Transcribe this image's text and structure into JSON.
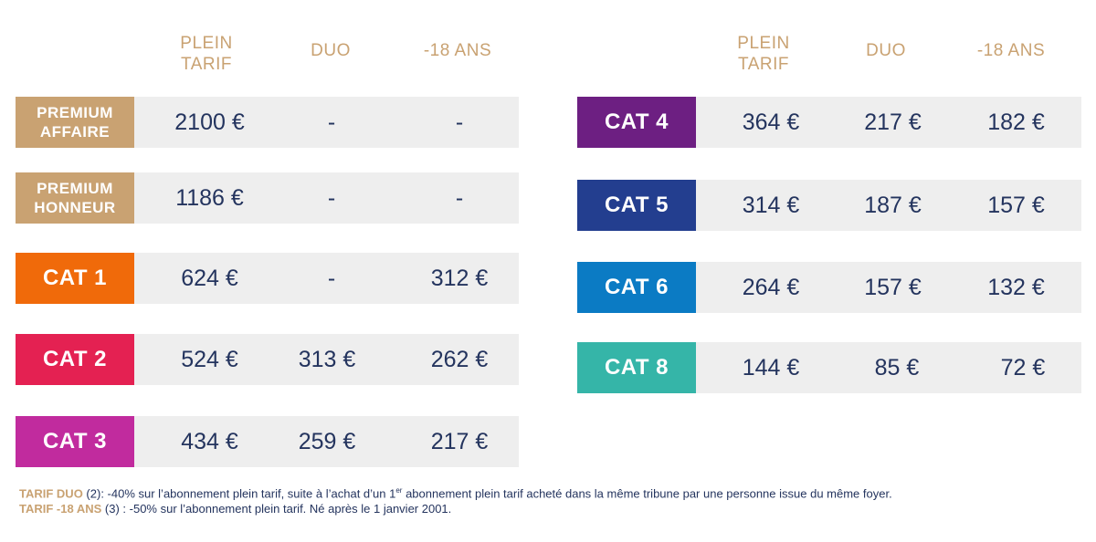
{
  "columns": [
    "PLEIN\nTARIF",
    "DUO",
    "-18 ANS"
  ],
  "colors": {
    "premium": "#c9a272",
    "cat1": "#f06a0a",
    "cat2": "#e42152",
    "cat3": "#c12b9e",
    "cat4": "#6d1f82",
    "cat5": "#233e8f",
    "cat6": "#0b7bc4",
    "cat8": "#35b5a8",
    "text": "#24345e",
    "row_bg": "#eeeeee"
  },
  "left_rows": [
    {
      "label": "PREMIUM\nAFFAIRE",
      "plein": "2100 €",
      "duo": "-",
      "moins18": "-"
    },
    {
      "label": "PREMIUM\nHONNEUR",
      "plein": "1186 €",
      "duo": "-",
      "moins18": "-"
    },
    {
      "label": "CAT 1",
      "plein": "624 €",
      "duo": "-",
      "moins18": "312 €"
    },
    {
      "label": "CAT 2",
      "plein": "524 €",
      "duo": "313 €",
      "moins18": "262 €"
    },
    {
      "label": "CAT 3",
      "plein": "434 €",
      "duo": "259 €",
      "moins18": "217 €"
    }
  ],
  "right_rows": [
    {
      "label": "CAT 4",
      "plein": "364 €",
      "duo": "217 €",
      "moins18": "182 €"
    },
    {
      "label": "CAT 5",
      "plein": "314 €",
      "duo": "187 €",
      "moins18": "157 €"
    },
    {
      "label": "CAT 6",
      "plein": "264 €",
      "duo": "157 €",
      "moins18": "132 €"
    },
    {
      "label": "CAT 8",
      "plein": "144 €",
      "duo": "85 €",
      "moins18": "72 €"
    }
  ],
  "notes": {
    "duo_key": "TARIF DUO",
    "duo_text_a": " (2): -40% sur l’abonnement plein tarif, suite à l’achat d’un 1",
    "duo_sup": "er",
    "duo_text_b": " abonnement plein tarif acheté dans la même tribune par une personne issue du même foyer.",
    "m18_key": "TARIF -18 ANS",
    "m18_text": " (3) : -50% sur l’abonnement plein tarif. Né après le 1 janvier 2001."
  }
}
